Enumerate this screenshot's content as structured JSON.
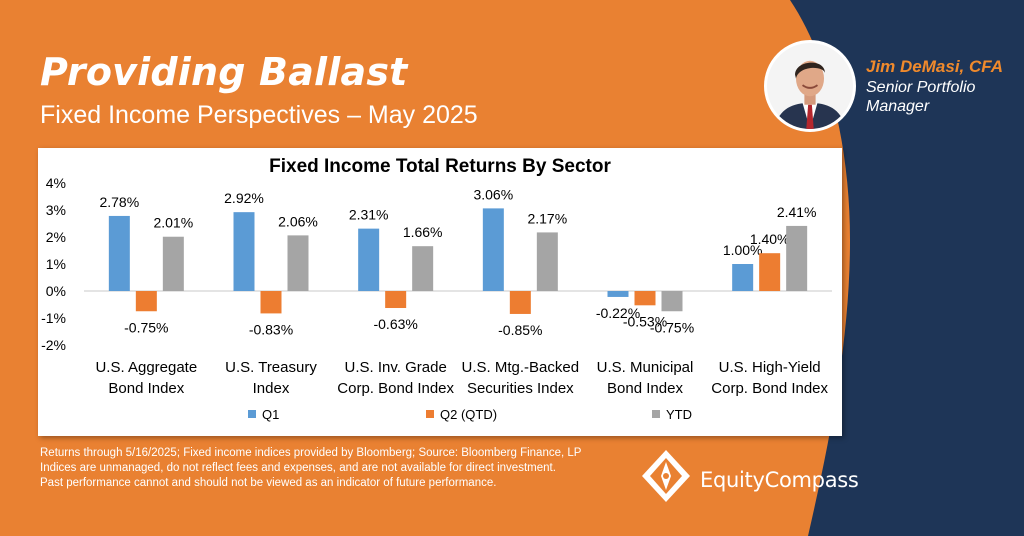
{
  "header": {
    "title": "Providing Ballast",
    "subtitle": "Fixed Income Perspectives – May 2025"
  },
  "author": {
    "name": "Jim DeMasi, CFA",
    "role": "Senior Portfolio Manager",
    "photo_icon": "portrait-photo-icon"
  },
  "colors": {
    "background_orange": "#e98132",
    "navy": "#1e3557",
    "accent_orange": "#f08a2c",
    "q1": "#5b9bd5",
    "q2": "#ed7d31",
    "ytd": "#a5a5a5"
  },
  "chart_data": {
    "type": "bar",
    "title": "Fixed Income Total Returns By Sector",
    "categories": [
      [
        "U.S. Aggregate",
        "Bond Index"
      ],
      [
        "U.S. Treasury",
        "Index"
      ],
      [
        "U.S. Inv. Grade",
        "Corp. Bond Index"
      ],
      [
        "U.S. Mtg.-Backed",
        "Securities Index"
      ],
      [
        "U.S. Municipal",
        "Bond Index"
      ],
      [
        "U.S. High-Yield",
        "Corp. Bond Index"
      ]
    ],
    "series": [
      {
        "name": "Q1",
        "values": [
          2.78,
          2.92,
          2.31,
          3.06,
          -0.22,
          1.0
        ],
        "labels": [
          "2.78%",
          "2.92%",
          "2.31%",
          "3.06%",
          "-0.22%",
          "1.00%"
        ]
      },
      {
        "name": "Q2 (QTD)",
        "values": [
          -0.75,
          -0.83,
          -0.63,
          -0.85,
          -0.53,
          1.4
        ],
        "labels": [
          "-0.75%",
          "-0.83%",
          "-0.63%",
          "-0.85%",
          "-0.53%",
          "1.40%"
        ]
      },
      {
        "name": "YTD",
        "values": [
          2.01,
          2.06,
          1.66,
          2.17,
          -0.75,
          2.41
        ],
        "labels": [
          "2.01%",
          "2.06%",
          "1.66%",
          "2.17%",
          "-0.75%",
          "2.41%"
        ]
      }
    ],
    "y_ticks": [
      "4%",
      "3%",
      "2%",
      "1%",
      "0%",
      "-1%",
      "-2%"
    ],
    "ylim": [
      -2,
      4
    ],
    "unit": "%",
    "grid": false,
    "legend_position": "bottom"
  },
  "footnotes": [
    "Returns through 5/16/2025; Fixed income indices provided by Bloomberg; Source: Bloomberg Finance, LP",
    "Indices are unmanaged, do not reflect fees and expenses, and are not available for direct investment.",
    "Past performance cannot and should not be viewed as an indicator of future performance."
  ],
  "brand": {
    "name": "EquityCompass",
    "logo_icon": "compass-logo-icon"
  }
}
